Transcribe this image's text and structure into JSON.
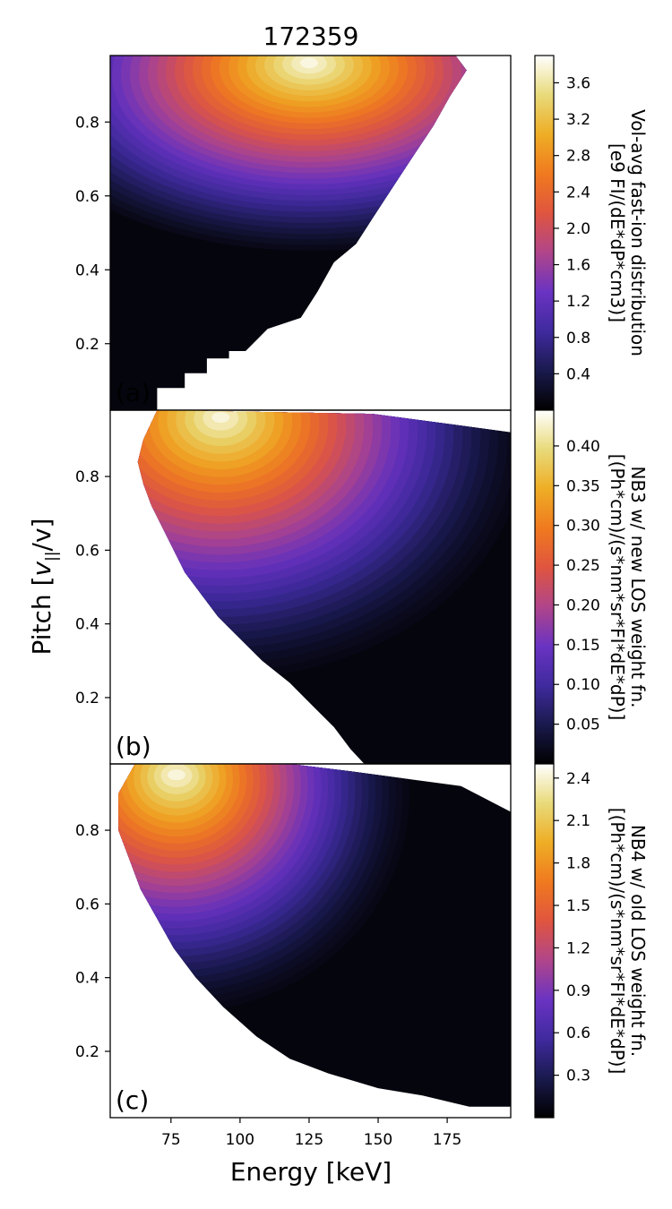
{
  "figure_title": "172359",
  "shared_axes": {
    "xlabel": "Energy [keV]",
    "ylabel": "Pitch [v||/v]",
    "ylabel_main": "Pitch [",
    "ylabel_var": "v",
    "ylabel_sub": "||",
    "ylabel_tail": "/v]",
    "xlim": [
      53,
      198
    ],
    "ylim": [
      0.02,
      0.98
    ],
    "xticks": [
      "75",
      "100",
      "125",
      "150",
      "175"
    ],
    "yticks": [
      "0.2",
      "0.4",
      "0.6",
      "0.8"
    ]
  },
  "colormap": {
    "name": "CMRmap",
    "stops": [
      "#000000",
      "#1a1a4d",
      "#3f2a9e",
      "#6a33c2",
      "#b0458a",
      "#e0553f",
      "#f07a1f",
      "#eeae25",
      "#e8da7a",
      "#ffffff"
    ]
  },
  "chart_data": [
    {
      "type": "heatmap",
      "panel_label": "(a)",
      "title": "172359",
      "xlabel": "",
      "ylabel": "Pitch [v||/v]",
      "colorbar_label_line1": "Vol-avg fast-ion distribution",
      "colorbar_label_line2": "[e9 FI/(dE*dP*cm3)]",
      "colorbar_range": [
        0,
        3.9
      ],
      "colorbar_ticks": [
        "0.4",
        "0.8",
        "1.2",
        "1.6",
        "2.0",
        "2.4",
        "2.8",
        "3.2",
        "3.6"
      ],
      "colorbar_tick_values": [
        0.4,
        0.8,
        1.2,
        1.6,
        2.0,
        2.4,
        2.8,
        3.2,
        3.6
      ],
      "max_value": 3.9,
      "peak": {
        "energy": 125,
        "pitch": 0.96
      },
      "nonzero_boundary": [
        [
          53,
          0.02
        ],
        [
          70,
          0.02
        ],
        [
          70,
          0.08
        ],
        [
          80,
          0.08
        ],
        [
          80,
          0.12
        ],
        [
          88,
          0.12
        ],
        [
          88,
          0.16
        ],
        [
          96,
          0.16
        ],
        [
          96,
          0.18
        ],
        [
          102,
          0.18
        ],
        [
          110,
          0.24
        ],
        [
          122,
          0.27
        ],
        [
          128,
          0.34
        ],
        [
          134,
          0.42
        ],
        [
          142,
          0.47
        ],
        [
          148,
          0.54
        ],
        [
          155,
          0.62
        ],
        [
          162,
          0.7
        ],
        [
          170,
          0.79
        ],
        [
          176,
          0.87
        ],
        [
          182,
          0.94
        ],
        [
          178,
          0.98
        ],
        [
          53,
          0.98
        ]
      ]
    },
    {
      "type": "heatmap",
      "panel_label": "(b)",
      "xlabel": "",
      "ylabel": "Pitch [v||/v]",
      "colorbar_label_line1": "NB3 w/ new LOS weight fn.",
      "colorbar_label_line2": "[(Ph*cm)/(s*nm*sr*FI*dE*dP)]",
      "colorbar_range": [
        0,
        0.445
      ],
      "colorbar_ticks": [
        "0.05",
        "0.10",
        "0.15",
        "0.20",
        "0.25",
        "0.30",
        "0.35",
        "0.40"
      ],
      "colorbar_tick_values": [
        0.05,
        0.1,
        0.15,
        0.2,
        0.25,
        0.3,
        0.35,
        0.4
      ],
      "max_value": 0.445,
      "peak": {
        "energy": 93,
        "pitch": 0.97
      },
      "nonzero_boundary": [
        [
          145,
          0.02
        ],
        [
          198,
          0.02
        ],
        [
          198,
          0.92
        ],
        [
          148,
          0.97
        ],
        [
          70,
          0.98
        ],
        [
          65,
          0.9
        ],
        [
          63,
          0.84
        ],
        [
          65,
          0.78
        ],
        [
          68,
          0.72
        ],
        [
          72,
          0.66
        ],
        [
          76,
          0.6
        ],
        [
          80,
          0.54
        ],
        [
          86,
          0.48
        ],
        [
          92,
          0.42
        ],
        [
          100,
          0.36
        ],
        [
          108,
          0.3
        ],
        [
          118,
          0.24
        ],
        [
          126,
          0.18
        ],
        [
          134,
          0.12
        ],
        [
          140,
          0.06
        ]
      ]
    },
    {
      "type": "heatmap",
      "panel_label": "(c)",
      "xlabel": "Energy [keV]",
      "ylabel": "Pitch [v||/v]",
      "colorbar_label_line1": "NB4 w/ old LOS weight fn.",
      "colorbar_label_line2": "[(Ph*cm)/(s*nm*sr*FI*dE*dP)]",
      "colorbar_range": [
        0,
        2.5
      ],
      "colorbar_ticks": [
        "0.3",
        "0.6",
        "0.9",
        "1.2",
        "1.5",
        "1.8",
        "2.1",
        "2.4"
      ],
      "colorbar_tick_values": [
        0.3,
        0.6,
        0.9,
        1.2,
        1.5,
        1.8,
        2.1,
        2.4
      ],
      "max_value": 2.5,
      "peak": {
        "energy": 77,
        "pitch": 0.96
      },
      "nonzero_boundary": [
        [
          183,
          0.05
        ],
        [
          198,
          0.05
        ],
        [
          198,
          0.85
        ],
        [
          180,
          0.92
        ],
        [
          140,
          0.96
        ],
        [
          118,
          0.98
        ],
        [
          62,
          0.98
        ],
        [
          56,
          0.9
        ],
        [
          56,
          0.8
        ],
        [
          60,
          0.72
        ],
        [
          64,
          0.64
        ],
        [
          70,
          0.56
        ],
        [
          76,
          0.48
        ],
        [
          84,
          0.4
        ],
        [
          94,
          0.32
        ],
        [
          106,
          0.24
        ],
        [
          118,
          0.18
        ],
        [
          132,
          0.14
        ],
        [
          150,
          0.1
        ],
        [
          166,
          0.08
        ]
      ]
    }
  ]
}
